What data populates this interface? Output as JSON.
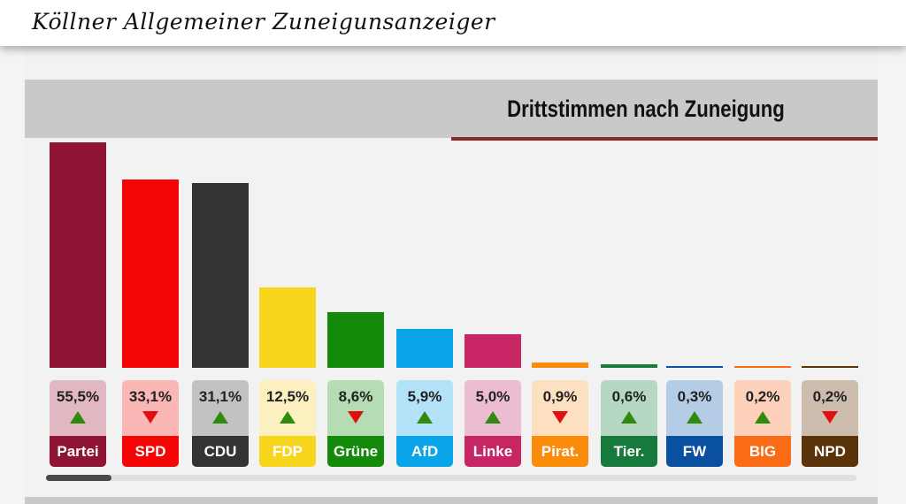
{
  "header": {
    "logo": "Köllner Allgemeiner Zuneigunsanzeiger"
  },
  "chart_data": {
    "type": "bar",
    "title": "Drittstimmen nach Zuneigung",
    "unit": "%",
    "categories": [
      "Partei",
      "SPD",
      "CDU",
      "FDP",
      "Grüne",
      "AfD",
      "Linke",
      "Pirat.",
      "Tier.",
      "FW",
      "BIG",
      "NPD"
    ],
    "values": [
      55.5,
      33.1,
      31.1,
      12.5,
      8.6,
      5.9,
      5.0,
      0.9,
      0.6,
      0.3,
      0.2,
      0.2
    ],
    "labels": [
      "55,5%",
      "33,1%",
      "31,1%",
      "12,5%",
      "8,6%",
      "5,9%",
      "5,0%",
      "0,9%",
      "0,6%",
      "0,3%",
      "0,2%",
      "0,2%"
    ],
    "trend": [
      "up",
      "down",
      "up",
      "up",
      "down",
      "up",
      "up",
      "down",
      "up",
      "up",
      "up",
      "down"
    ],
    "colors": [
      "#8f1434",
      "#f50505",
      "#333333",
      "#f7d51d",
      "#148a0a",
      "#0aa5e8",
      "#c82565",
      "#fa8c0a",
      "#167a3c",
      "#0a50a0",
      "#f96b14",
      "#5a330a"
    ],
    "light_colors": [
      "#e2b9c3",
      "#fbb6b6",
      "#c2c2c2",
      "#fdf0c0",
      "#b6dcb4",
      "#b4e2f6",
      "#ecbcd2",
      "#fde0c0",
      "#b6d8c2",
      "#b4cce6",
      "#fdd0ba",
      "#cdbdae"
    ]
  }
}
